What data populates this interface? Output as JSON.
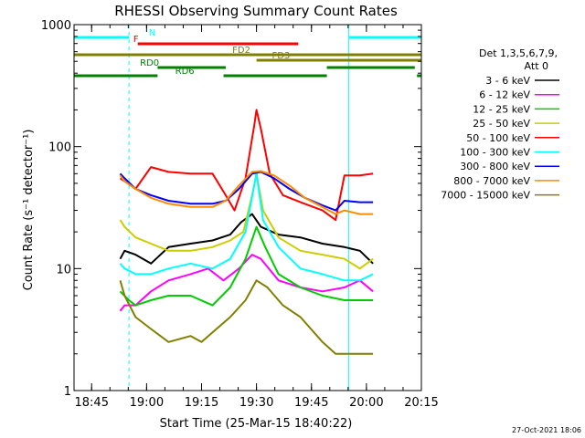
{
  "chart_data": {
    "type": "line",
    "title": "RHESSI Observing Summary Count Rates",
    "xlabel": "Start Time (25-Mar-15 18:40:22)",
    "ylabel": "Count Rate (s⁻¹ detector⁻¹)",
    "y_scale": "log",
    "ylim": [
      1,
      1000
    ],
    "xlim_minutes": [
      18.67,
      20.25
    ],
    "x_ticks": [
      {
        "label": "18:45",
        "t": 18.75
      },
      {
        "label": "19:00",
        "t": 19.0
      },
      {
        "label": "19:15",
        "t": 19.25
      },
      {
        "label": "19:30",
        "t": 19.5
      },
      {
        "label": "19:45",
        "t": 19.75
      },
      {
        "label": "20:00",
        "t": 20.0
      },
      {
        "label": "20:15",
        "t": 20.25
      }
    ],
    "y_ticks": [
      {
        "label": "1",
        "v": 1
      },
      {
        "label": "10",
        "v": 10
      },
      {
        "label": "100",
        "v": 100
      },
      {
        "label": "1000",
        "v": 1000
      }
    ],
    "legend_header": [
      "Det 1,3,5,6,7,9,",
      "Att 0"
    ],
    "legend_position": "right",
    "timestamp": "27-Oct-2021 18:06",
    "flags": [
      {
        "label": "N",
        "color": "#00ffff",
        "segments": [
          [
            18.67,
            18.92
          ],
          [
            19.92,
            20.25
          ]
        ],
        "level": "N"
      },
      {
        "label": "F",
        "color": "#ff0000",
        "segments": [
          [
            18.96,
            19.69
          ]
        ],
        "level": "F"
      },
      {
        "label": "FD2",
        "color": "#808000",
        "segments": [
          [
            18.67,
            20.25
          ]
        ],
        "level": "FD2"
      },
      {
        "label": "FD3",
        "color": "#808000",
        "segments": [
          [
            19.5,
            20.25
          ]
        ],
        "level": "FD3"
      },
      {
        "label": "RD0",
        "color": "#008000",
        "segments": [
          [
            19.05,
            19.36
          ],
          [
            19.82,
            20.22
          ]
        ],
        "level": "RD0"
      },
      {
        "label": "RD6",
        "color": "#008000",
        "segments": [
          [
            18.67,
            19.05
          ],
          [
            19.35,
            19.82
          ],
          [
            20.23,
            20.25
          ]
        ],
        "level": "RD6"
      }
    ],
    "series": [
      {
        "name": "3 - 6 keV",
        "color": "#000000",
        "points": [
          [
            18.88,
            12
          ],
          [
            18.9,
            14
          ],
          [
            18.95,
            13
          ],
          [
            19.02,
            11
          ],
          [
            19.1,
            15
          ],
          [
            19.2,
            16
          ],
          [
            19.3,
            17
          ],
          [
            19.38,
            19
          ],
          [
            19.43,
            24
          ],
          [
            19.48,
            28
          ],
          [
            19.52,
            22
          ],
          [
            19.6,
            19
          ],
          [
            19.7,
            18
          ],
          [
            19.8,
            16
          ],
          [
            19.9,
            15
          ],
          [
            19.97,
            14
          ],
          [
            20.03,
            11
          ]
        ]
      },
      {
        "name": "6 - 12 keV",
        "color": "#ff00ff",
        "points": [
          [
            18.88,
            4.5
          ],
          [
            18.9,
            5
          ],
          [
            18.95,
            5
          ],
          [
            19.02,
            6.5
          ],
          [
            19.1,
            8
          ],
          [
            19.2,
            9
          ],
          [
            19.28,
            10
          ],
          [
            19.35,
            8
          ],
          [
            19.42,
            10
          ],
          [
            19.48,
            13
          ],
          [
            19.52,
            12
          ],
          [
            19.6,
            8
          ],
          [
            19.7,
            7
          ],
          [
            19.8,
            6.5
          ],
          [
            19.9,
            7
          ],
          [
            19.97,
            8
          ],
          [
            20.03,
            6.5
          ]
        ]
      },
      {
        "name": "12 - 25 keV",
        "color": "#00cc00",
        "points": [
          [
            18.88,
            6.5
          ],
          [
            18.92,
            5.5
          ],
          [
            18.95,
            5
          ],
          [
            19.02,
            5.5
          ],
          [
            19.1,
            6
          ],
          [
            19.2,
            6
          ],
          [
            19.3,
            5
          ],
          [
            19.38,
            7
          ],
          [
            19.45,
            12
          ],
          [
            19.5,
            22
          ],
          [
            19.54,
            15
          ],
          [
            19.6,
            9
          ],
          [
            19.7,
            7
          ],
          [
            19.8,
            6
          ],
          [
            19.9,
            5.5
          ],
          [
            19.97,
            5.5
          ],
          [
            20.03,
            5.5
          ]
        ]
      },
      {
        "name": "25 - 50 keV",
        "color": "#cccc00",
        "points": [
          [
            18.88,
            25
          ],
          [
            18.9,
            22
          ],
          [
            18.95,
            18
          ],
          [
            19.02,
            16
          ],
          [
            19.1,
            14
          ],
          [
            19.2,
            14
          ],
          [
            19.3,
            15
          ],
          [
            19.38,
            17
          ],
          [
            19.44,
            20
          ],
          [
            19.48,
            40
          ],
          [
            19.5,
            60
          ],
          [
            19.53,
            30
          ],
          [
            19.6,
            18
          ],
          [
            19.7,
            14
          ],
          [
            19.8,
            13
          ],
          [
            19.9,
            12
          ],
          [
            19.97,
            10
          ],
          [
            20.03,
            12
          ]
        ]
      },
      {
        "name": "50 - 100 keV",
        "color": "#ff0000",
        "points": [
          [
            18.88,
            55
          ],
          [
            18.9,
            52
          ],
          [
            18.95,
            45
          ],
          [
            19.02,
            68
          ],
          [
            19.1,
            62
          ],
          [
            19.2,
            60
          ],
          [
            19.3,
            60
          ],
          [
            19.36,
            40
          ],
          [
            19.4,
            30
          ],
          [
            19.45,
            55
          ],
          [
            19.49,
            150
          ],
          [
            19.5,
            200
          ],
          [
            19.52,
            140
          ],
          [
            19.56,
            60
          ],
          [
            19.62,
            40
          ],
          [
            19.7,
            35
          ],
          [
            19.8,
            30
          ],
          [
            19.86,
            25
          ],
          [
            19.9,
            58
          ],
          [
            19.97,
            58
          ],
          [
            20.03,
            60
          ]
        ]
      },
      {
        "name": "100 - 300 keV",
        "color": "#00ffff",
        "points": [
          [
            18.88,
            11
          ],
          [
            18.9,
            10
          ],
          [
            18.95,
            9
          ],
          [
            19.02,
            9
          ],
          [
            19.1,
            10
          ],
          [
            19.2,
            11
          ],
          [
            19.3,
            10
          ],
          [
            19.38,
            12
          ],
          [
            19.45,
            20
          ],
          [
            19.5,
            60
          ],
          [
            19.53,
            25
          ],
          [
            19.6,
            15
          ],
          [
            19.7,
            10
          ],
          [
            19.8,
            9
          ],
          [
            19.9,
            8
          ],
          [
            19.97,
            8
          ],
          [
            20.03,
            9
          ]
        ]
      },
      {
        "name": "300 - 800 keV",
        "color": "#0000ff",
        "points": [
          [
            18.88,
            60
          ],
          [
            18.9,
            55
          ],
          [
            18.95,
            45
          ],
          [
            19.02,
            40
          ],
          [
            19.1,
            36
          ],
          [
            19.2,
            34
          ],
          [
            19.3,
            34
          ],
          [
            19.36,
            36
          ],
          [
            19.42,
            45
          ],
          [
            19.48,
            60
          ],
          [
            19.52,
            62
          ],
          [
            19.58,
            55
          ],
          [
            19.65,
            45
          ],
          [
            19.72,
            38
          ],
          [
            19.8,
            33
          ],
          [
            19.86,
            30
          ],
          [
            19.9,
            36
          ],
          [
            19.97,
            35
          ],
          [
            20.03,
            35
          ]
        ]
      },
      {
        "name": "800 - 7000 keV",
        "color": "#ff8c00",
        "points": [
          [
            18.88,
            58
          ],
          [
            18.9,
            52
          ],
          [
            18.95,
            45
          ],
          [
            19.02,
            38
          ],
          [
            19.1,
            34
          ],
          [
            19.2,
            32
          ],
          [
            19.3,
            32
          ],
          [
            19.36,
            36
          ],
          [
            19.42,
            48
          ],
          [
            19.48,
            62
          ],
          [
            19.52,
            63
          ],
          [
            19.58,
            58
          ],
          [
            19.65,
            48
          ],
          [
            19.72,
            38
          ],
          [
            19.8,
            32
          ],
          [
            19.86,
            28
          ],
          [
            19.9,
            30
          ],
          [
            19.97,
            28
          ],
          [
            20.03,
            28
          ]
        ]
      },
      {
        "name": "7000 - 15000 keV",
        "color": "#808000",
        "points": [
          [
            18.88,
            8
          ],
          [
            18.9,
            6
          ],
          [
            18.95,
            4
          ],
          [
            19.02,
            3.2
          ],
          [
            19.1,
            2.5
          ],
          [
            19.2,
            2.8
          ],
          [
            19.25,
            2.5
          ],
          [
            19.3,
            3
          ],
          [
            19.38,
            4
          ],
          [
            19.45,
            5.5
          ],
          [
            19.5,
            8
          ],
          [
            19.55,
            7
          ],
          [
            19.62,
            5
          ],
          [
            19.7,
            4
          ],
          [
            19.8,
            2.5
          ],
          [
            19.86,
            2
          ],
          [
            19.9,
            2
          ],
          [
            19.97,
            2
          ],
          [
            20.03,
            2
          ]
        ]
      }
    ]
  }
}
